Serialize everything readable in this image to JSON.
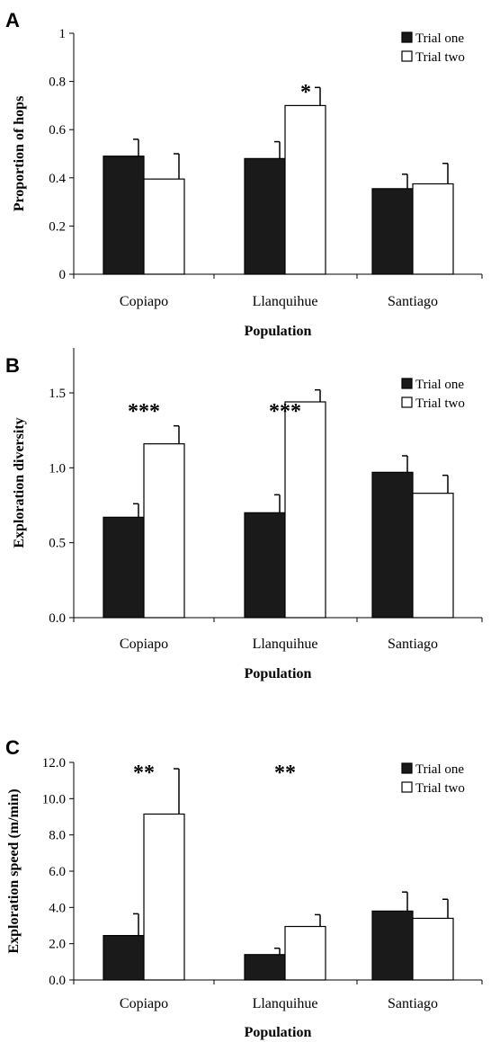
{
  "colors": {
    "trial_one": "#1a1a1a",
    "trial_two": "#ffffff",
    "outline": "#000000"
  },
  "chart_data": [
    {
      "type": "bar",
      "panel": "A",
      "categories": [
        "Copiapo",
        "Llanquihue",
        "Santiago"
      ],
      "xlabel": "Population",
      "ylabel": "Proportion of hops",
      "ylim": [
        0,
        1
      ],
      "yticks": [
        "0",
        "0.2",
        "0.4",
        "0.6",
        "0.8",
        "1"
      ],
      "ytick_values": [
        0,
        0.2,
        0.4,
        0.6,
        0.8,
        1
      ],
      "legend_position": "top-right",
      "series": [
        {
          "name": "Trial one",
          "values": [
            0.49,
            0.48,
            0.355
          ],
          "errors": [
            0.07,
            0.07,
            0.06
          ]
        },
        {
          "name": "Trial two",
          "values": [
            0.395,
            0.7,
            0.375
          ],
          "errors": [
            0.105,
            0.075,
            0.085
          ]
        }
      ],
      "annotations": [
        "",
        "*",
        ""
      ]
    },
    {
      "type": "bar",
      "panel": "B",
      "categories": [
        "Copiapo",
        "Llanquihue",
        "Santiago"
      ],
      "xlabel": "Population",
      "ylabel": "Exploration diversity",
      "ylim": [
        0,
        1.8
      ],
      "yticks": [
        "0.0",
        "0.5",
        "1.0",
        "1.5"
      ],
      "ytick_values": [
        0,
        0.5,
        1.0,
        1.5
      ],
      "legend_position": "top-right",
      "series": [
        {
          "name": "Trial one",
          "values": [
            0.67,
            0.7,
            0.97
          ],
          "errors": [
            0.09,
            0.12,
            0.11
          ]
        },
        {
          "name": "Trial two",
          "values": [
            1.16,
            1.44,
            0.83
          ],
          "errors": [
            0.12,
            0.08,
            0.12
          ]
        }
      ],
      "annotations": [
        "***",
        "***",
        ""
      ]
    },
    {
      "type": "bar",
      "panel": "C",
      "categories": [
        "Copiapo",
        "Llanquihue",
        "Santiago"
      ],
      "xlabel": "Population",
      "ylabel": "Exploration speed (m/min)",
      "ylim": [
        0,
        12
      ],
      "yticks": [
        "0.0",
        "2.0",
        "4.0",
        "6.0",
        "8.0",
        "10.0",
        "12.0"
      ],
      "ytick_values": [
        0,
        2,
        4,
        6,
        8,
        10,
        12
      ],
      "legend_position": "top-right",
      "series": [
        {
          "name": "Trial one",
          "values": [
            2.45,
            1.4,
            3.8
          ],
          "errors": [
            1.2,
            0.35,
            1.05
          ]
        },
        {
          "name": "Trial two",
          "values": [
            9.15,
            2.95,
            3.4
          ],
          "errors": [
            2.5,
            0.65,
            1.05
          ]
        }
      ],
      "annotations": [
        "**",
        "**",
        ""
      ]
    }
  ]
}
